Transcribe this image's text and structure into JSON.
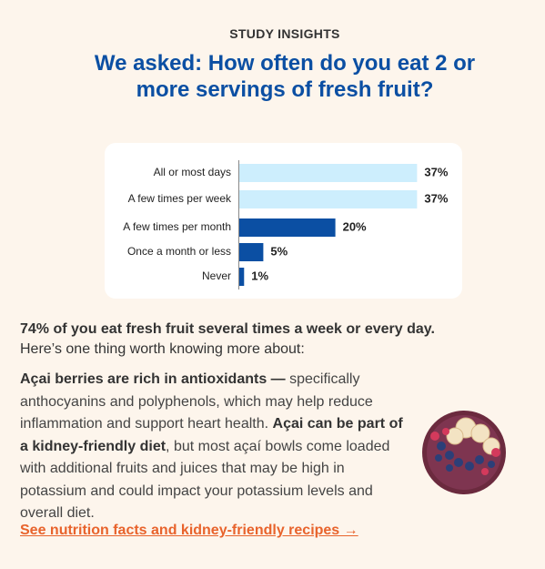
{
  "header": {
    "eyebrow": "STUDY INSIGHTS",
    "title": "We asked: How often do you eat 2 or more servings of fresh fruit?"
  },
  "chart_data": {
    "type": "bar",
    "categories": [
      "All or most days",
      "A few times per week",
      "A few times per month",
      "Once a month or less",
      "Never"
    ],
    "values": [
      37,
      37,
      20,
      5,
      1
    ],
    "value_labels": [
      "37%",
      "37%",
      "20%",
      "5%",
      "1%"
    ],
    "colors": [
      "#cdeefd",
      "#cdeefd",
      "#0b4fa3",
      "#0b4fa3",
      "#0b4fa3"
    ]
  },
  "body": {
    "summary_bold": "74% of you eat fresh fruit several times a week or every day.",
    "summary": "Here’s one thing worth knowing more about:",
    "detail": [
      {
        "text": "Açai berries are rich in antioxidants —",
        "bold": true
      },
      {
        "text": "specifically anthocyanins and polyphenols, which may help reduce inflammation and support heart health.",
        "bold": false
      },
      {
        "text": "Açai can be part of a kidney-friendly diet",
        "bold": true
      },
      {
        "text": ", but most açaí bowls come loaded with additional fruits and juices that may be high in potassium and could impact your potassium levels and overall diet.",
        "bold": false
      }
    ],
    "link": "See nutrition facts and kidney-friendly recipes →"
  }
}
